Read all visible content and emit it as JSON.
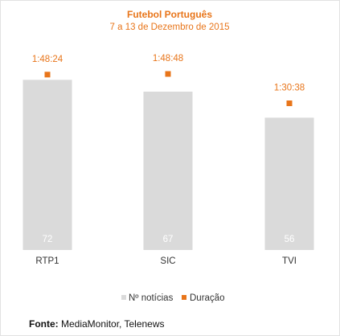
{
  "chart_data": {
    "type": "bar",
    "title": "Futebol Português",
    "subtitle": "7 a 13 de Dezembro de 2015",
    "categories": [
      "RTP1",
      "SIC",
      "TVI"
    ],
    "series": [
      {
        "name": "Nº notícias",
        "kind": "bar",
        "color": "#dadada",
        "values": [
          72,
          67,
          56
        ]
      },
      {
        "name": "Duração",
        "kind": "marker",
        "color": "#e8751a",
        "values": [
          "1:48:24",
          "1:48:48",
          "1:30:38"
        ],
        "seconds": [
          6504,
          6528,
          5438
        ]
      }
    ],
    "ylim": [
      0,
      100
    ],
    "grid": false,
    "legend": "bottom-center"
  },
  "source": {
    "label": "Fonte:",
    "text": "MediaMonitor, Telenews"
  }
}
